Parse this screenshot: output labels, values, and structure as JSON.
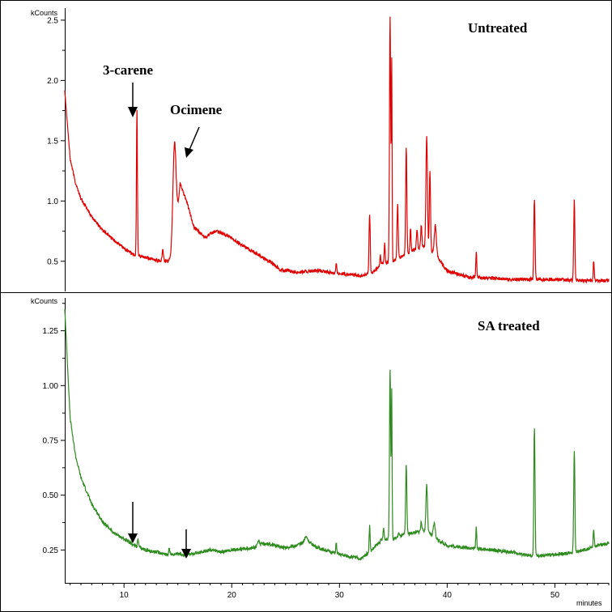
{
  "chart_data": [
    {
      "type": "line",
      "title": "Untreated",
      "ylabel": "kCounts",
      "xlabel": "minutes",
      "xlim": [
        4.5,
        55
      ],
      "ylim": [
        0.25,
        2.6
      ],
      "yticks": [
        0.5,
        1.0,
        1.5,
        2.0,
        2.5
      ],
      "ytick_labels": [
        "0.5",
        "1.0",
        "1.5",
        "2.0",
        "2.5"
      ],
      "color": "#e00000",
      "baseline": [
        [
          4.5,
          1.92
        ],
        [
          5,
          1.35
        ],
        [
          5.5,
          1.15
        ],
        [
          6,
          1.02
        ],
        [
          7,
          0.87
        ],
        [
          8,
          0.76
        ],
        [
          9,
          0.68
        ],
        [
          10,
          0.61
        ],
        [
          11,
          0.55
        ],
        [
          12,
          0.53
        ],
        [
          13,
          0.51
        ],
        [
          14,
          0.5
        ],
        [
          14.7,
          0.52
        ],
        [
          15.2,
          1.15
        ],
        [
          15.8,
          1.0
        ],
        [
          16.5,
          0.78
        ],
        [
          17.5,
          0.7
        ],
        [
          18.5,
          0.75
        ],
        [
          19.5,
          0.72
        ],
        [
          20.5,
          0.66
        ],
        [
          22,
          0.58
        ],
        [
          23.5,
          0.5
        ],
        [
          24.5,
          0.43
        ],
        [
          26,
          0.41
        ],
        [
          28,
          0.42
        ],
        [
          30,
          0.4
        ],
        [
          32,
          0.38
        ],
        [
          33,
          0.4
        ],
        [
          34,
          0.48
        ],
        [
          35,
          0.5
        ],
        [
          36,
          0.55
        ],
        [
          37,
          0.6
        ],
        [
          38,
          0.62
        ],
        [
          39,
          0.55
        ],
        [
          40,
          0.42
        ],
        [
          42,
          0.37
        ],
        [
          44,
          0.36
        ],
        [
          46,
          0.35
        ],
        [
          48,
          0.35
        ],
        [
          50,
          0.35
        ],
        [
          52,
          0.34
        ],
        [
          54,
          0.34
        ],
        [
          55,
          0.34
        ]
      ],
      "peaks": [
        [
          11.2,
          1.75,
          0.1
        ],
        [
          13.6,
          0.6,
          0.12
        ],
        [
          14.7,
          1.48,
          0.35
        ],
        [
          29.7,
          0.48,
          0.1
        ],
        [
          32.8,
          0.9,
          0.12
        ],
        [
          33.8,
          0.55,
          0.1
        ],
        [
          34.2,
          0.65,
          0.1
        ],
        [
          34.7,
          2.52,
          0.12
        ],
        [
          34.85,
          2.15,
          0.08
        ],
        [
          35.4,
          0.98,
          0.12
        ],
        [
          36.2,
          1.45,
          0.12
        ],
        [
          36.6,
          0.78,
          0.1
        ],
        [
          37.2,
          0.75,
          0.12
        ],
        [
          37.6,
          0.8,
          0.12
        ],
        [
          38.1,
          1.55,
          0.15
        ],
        [
          38.4,
          1.25,
          0.12
        ],
        [
          38.9,
          0.8,
          0.2
        ],
        [
          42.7,
          0.57,
          0.1
        ],
        [
          48.1,
          1.02,
          0.12
        ],
        [
          51.8,
          1.0,
          0.12
        ],
        [
          53.6,
          0.5,
          0.1
        ]
      ],
      "annotations": [
        {
          "text": "3-carene",
          "x": 11.2,
          "y": 2.15
        },
        {
          "text": "Ocimene",
          "x": 16.5,
          "y": 1.75
        }
      ]
    },
    {
      "type": "line",
      "title": "SA treated",
      "ylabel": "kCounts",
      "xlabel": "minutes",
      "xlim": [
        4.5,
        55
      ],
      "ylim": [
        0.1,
        1.4
      ],
      "yticks": [
        0.25,
        0.5,
        0.75,
        1.0,
        1.25
      ],
      "ytick_labels": [
        "0.25",
        "0.50",
        "0.75",
        "1.00",
        "1.25"
      ],
      "xticks": [
        10,
        20,
        30,
        40,
        50
      ],
      "xtick_labels": [
        "10",
        "20",
        "30",
        "40",
        "50"
      ],
      "color": "#2e8b1e",
      "baseline": [
        [
          4.5,
          1.35
        ],
        [
          5,
          0.85
        ],
        [
          5.5,
          0.68
        ],
        [
          6,
          0.58
        ],
        [
          7,
          0.46
        ],
        [
          8,
          0.38
        ],
        [
          9,
          0.33
        ],
        [
          10,
          0.3
        ],
        [
          11,
          0.27
        ],
        [
          12,
          0.25
        ],
        [
          13,
          0.24
        ],
        [
          14,
          0.23
        ],
        [
          15,
          0.23
        ],
        [
          16,
          0.23
        ],
        [
          17,
          0.24
        ],
        [
          18,
          0.25
        ],
        [
          19,
          0.24
        ],
        [
          20,
          0.25
        ],
        [
          22,
          0.26
        ],
        [
          23,
          0.28
        ],
        [
          24,
          0.27
        ],
        [
          25,
          0.26
        ],
        [
          26,
          0.27
        ],
        [
          27,
          0.29
        ],
        [
          28,
          0.26
        ],
        [
          30,
          0.23
        ],
        [
          32,
          0.21
        ],
        [
          33,
          0.25
        ],
        [
          34,
          0.3
        ],
        [
          35,
          0.3
        ],
        [
          36,
          0.32
        ],
        [
          37,
          0.33
        ],
        [
          38,
          0.34
        ],
        [
          39,
          0.3
        ],
        [
          40,
          0.27
        ],
        [
          42,
          0.26
        ],
        [
          44,
          0.25
        ],
        [
          46,
          0.24
        ],
        [
          48,
          0.22
        ],
        [
          50,
          0.23
        ],
        [
          52,
          0.24
        ],
        [
          54,
          0.27
        ],
        [
          55,
          0.28
        ]
      ],
      "peaks": [
        [
          11.3,
          0.3,
          0.1
        ],
        [
          14.2,
          0.26,
          0.1
        ],
        [
          22.5,
          0.29,
          0.2
        ],
        [
          26.9,
          0.31,
          0.3
        ],
        [
          29.7,
          0.28,
          0.1
        ],
        [
          32.8,
          0.36,
          0.1
        ],
        [
          34.1,
          0.35,
          0.1
        ],
        [
          34.7,
          1.08,
          0.12
        ],
        [
          34.85,
          0.97,
          0.08
        ],
        [
          35.5,
          0.33,
          0.1
        ],
        [
          36.2,
          0.64,
          0.12
        ],
        [
          37.6,
          0.38,
          0.12
        ],
        [
          38.1,
          0.55,
          0.15
        ],
        [
          38.8,
          0.37,
          0.2
        ],
        [
          42.7,
          0.35,
          0.1
        ],
        [
          48.1,
          0.81,
          0.12
        ],
        [
          51.8,
          0.7,
          0.12
        ],
        [
          53.6,
          0.35,
          0.1
        ]
      ],
      "annotations": [
        {
          "text": "",
          "x": 11.2,
          "y": 0.43
        },
        {
          "text": "",
          "x": 16.0,
          "y": 0.43
        }
      ]
    }
  ]
}
